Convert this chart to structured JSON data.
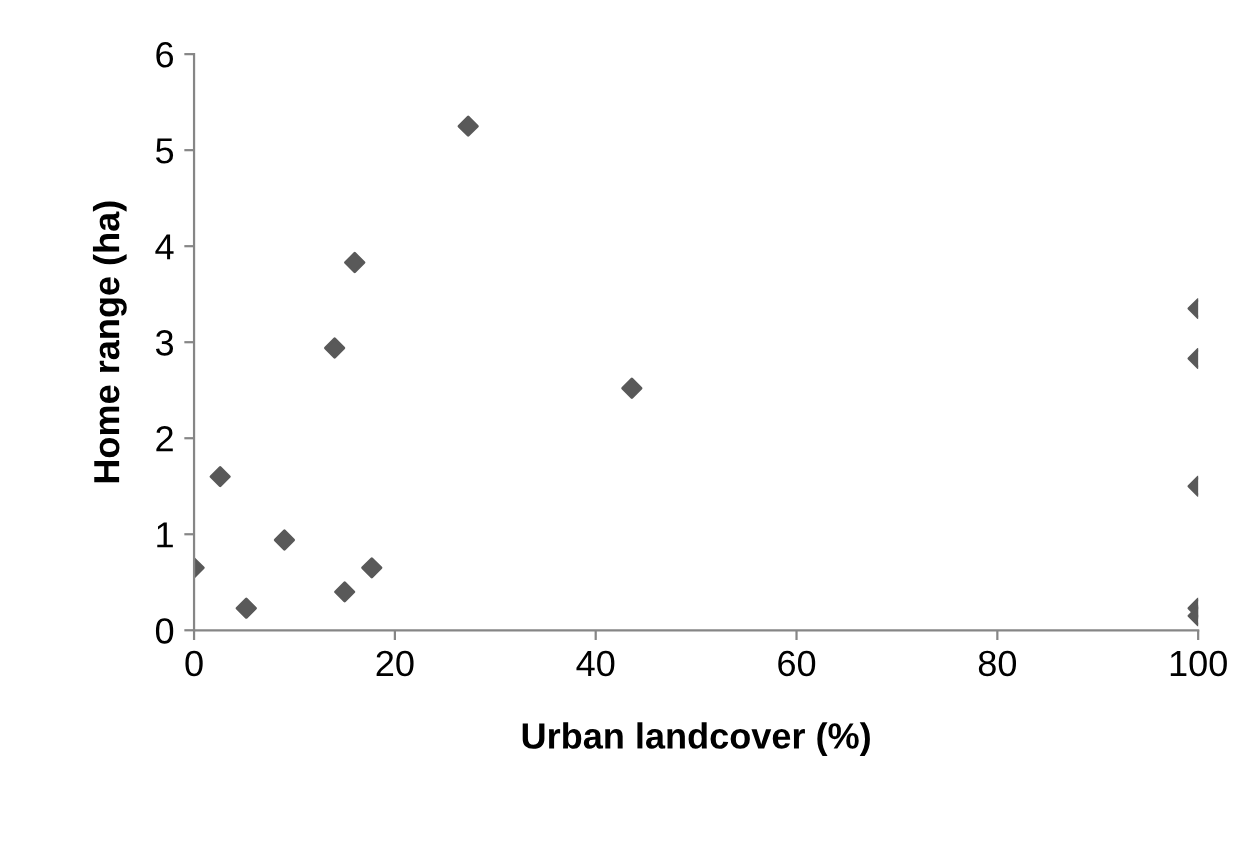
{
  "chart_data": {
    "type": "scatter",
    "xlabel": "Urban landcover (%)",
    "ylabel": "Home range (ha)",
    "x": [
      0,
      2.6,
      5.2,
      9,
      14,
      15,
      16,
      17.7,
      27.3,
      43.6,
      100,
      100,
      100,
      100,
      100
    ],
    "series": [
      {
        "color": "#595959",
        "values": [
          0.65,
          1.6,
          0.23,
          0.94,
          2.94,
          0.4,
          3.83,
          0.65,
          5.25,
          2.52,
          3.35,
          2.83,
          1.5,
          0.23,
          0.15
        ]
      }
    ],
    "xlim": [
      0,
      100
    ],
    "xticks": [
      0,
      20,
      40,
      60,
      80,
      100
    ],
    "ylim": [
      0,
      6
    ],
    "yticks": [
      0,
      1,
      2,
      3,
      4,
      5,
      6
    ],
    "marker": "diamond",
    "grid": false,
    "legend": false
  }
}
